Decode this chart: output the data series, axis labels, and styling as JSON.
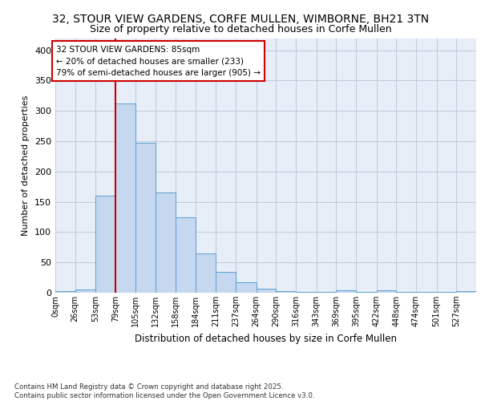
{
  "title1": "32, STOUR VIEW GARDENS, CORFE MULLEN, WIMBORNE, BH21 3TN",
  "title2": "Size of property relative to detached houses in Corfe Mullen",
  "xlabel": "Distribution of detached houses by size in Corfe Mullen",
  "ylabel": "Number of detached properties",
  "bin_labels": [
    "0sqm",
    "26sqm",
    "53sqm",
    "79sqm",
    "105sqm",
    "132sqm",
    "158sqm",
    "184sqm",
    "211sqm",
    "237sqm",
    "264sqm",
    "290sqm",
    "316sqm",
    "343sqm",
    "369sqm",
    "395sqm",
    "422sqm",
    "448sqm",
    "474sqm",
    "501sqm",
    "527sqm"
  ],
  "bin_edges": [
    0,
    26,
    53,
    79,
    105,
    132,
    158,
    184,
    211,
    237,
    264,
    290,
    316,
    343,
    369,
    395,
    422,
    448,
    474,
    501,
    527,
    553
  ],
  "values": [
    2,
    5,
    160,
    312,
    247,
    165,
    125,
    65,
    34,
    17,
    7,
    3,
    1,
    1,
    4,
    1,
    4,
    1,
    1,
    1,
    2
  ],
  "bar_color": "#c5d8f0",
  "bar_edge_color": "#5a9fd4",
  "vline_x": 79,
  "vline_color": "#cc0000",
  "annotation_text": "32 STOUR VIEW GARDENS: 85sqm\n← 20% of detached houses are smaller (233)\n79% of semi-detached houses are larger (905) →",
  "annotation_box_color": "#ffffff",
  "annotation_box_edge": "#cc0000",
  "ylim": [
    0,
    420
  ],
  "yticks": [
    0,
    50,
    100,
    150,
    200,
    250,
    300,
    350,
    400
  ],
  "footer_text": "Contains HM Land Registry data © Crown copyright and database right 2025.\nContains public sector information licensed under the Open Government Licence v3.0.",
  "bg_color": "#ffffff",
  "plot_bg_color": "#e8eef8",
  "grid_color": "#c0ccdd",
  "title1_fontsize": 10,
  "title2_fontsize": 9
}
